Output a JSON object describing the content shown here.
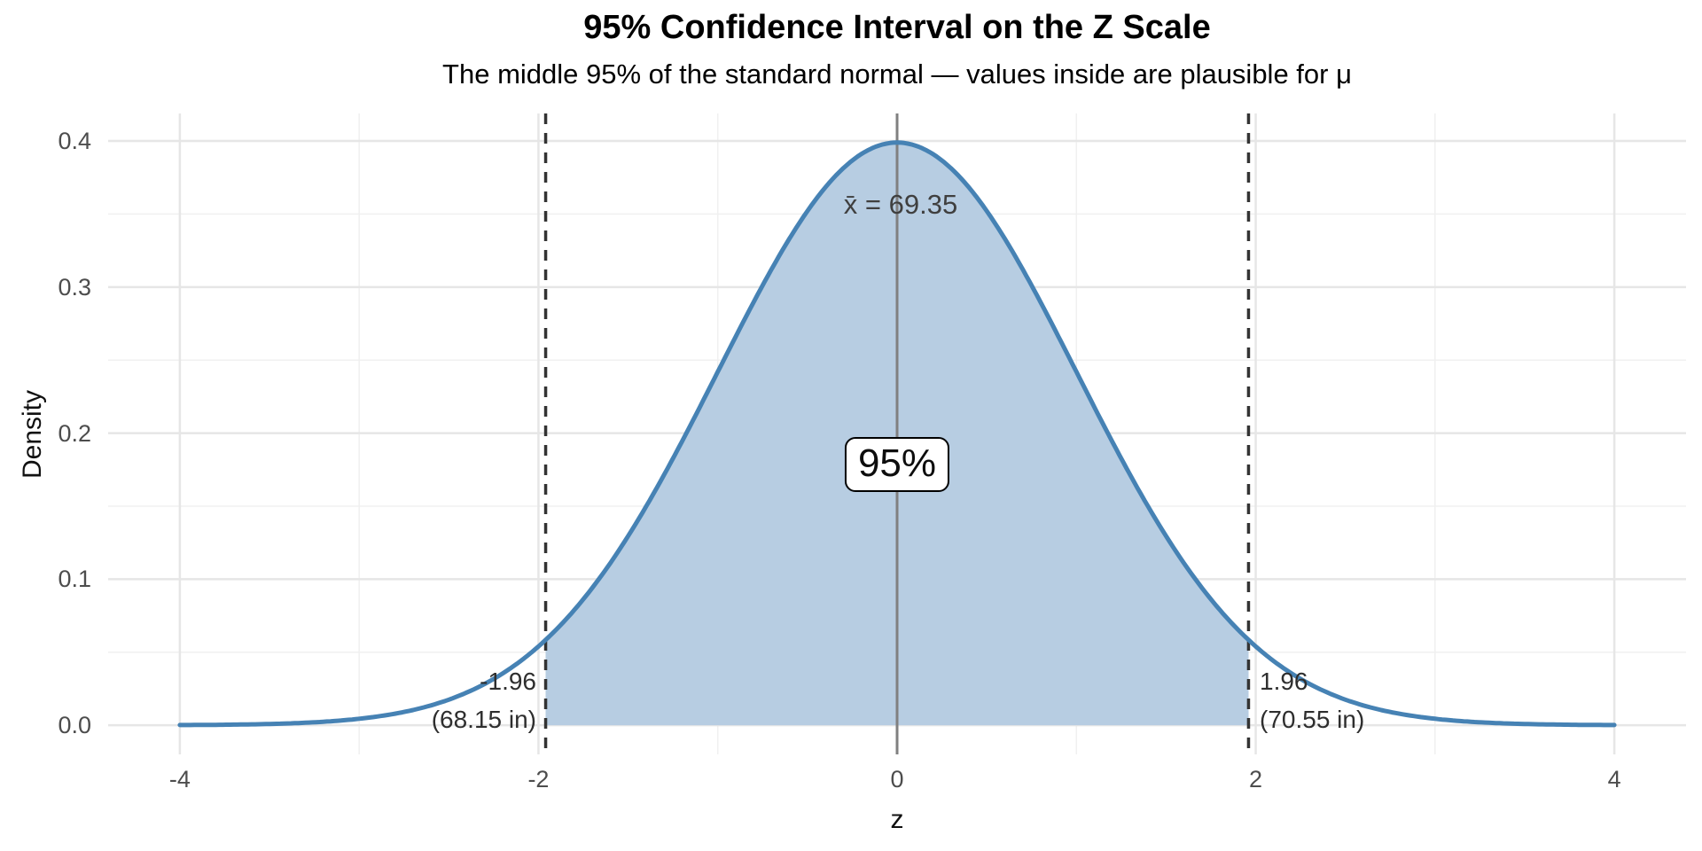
{
  "chart": {
    "title": "95% Confidence Interval on the Z Scale",
    "subtitle": "The middle 95% of the standard normal — values inside are plausible for μ",
    "x_axis": {
      "label": "z",
      "tick_values": [
        -4,
        -2,
        0,
        2,
        4
      ],
      "tick_labels": [
        "-4",
        "-2",
        "0",
        "2",
        "4"
      ],
      "minor_tick_values": [
        -3,
        -1,
        1,
        3
      ]
    },
    "y_axis": {
      "label": "Density",
      "tick_values": [
        0,
        0.1,
        0.2,
        0.3,
        0.4
      ],
      "tick_labels": [
        "0.0",
        "0.1",
        "0.2",
        "0.3",
        "0.4"
      ],
      "minor_tick_values": [
        0.05,
        0.15,
        0.25,
        0.35
      ]
    },
    "annotations": {
      "mean_label": "x̄ = 69.35",
      "ci_label": "95%",
      "lower_bound": {
        "z": "-1.96",
        "original": "(68.15 in)"
      },
      "upper_bound": {
        "z": "1.96",
        "original": "(70.55 in)"
      }
    },
    "colors": {
      "curve_stroke": "#4682b4",
      "curve_fill": "#b7cde2",
      "dashed_line": "#333333",
      "mean_line": "#808080",
      "grid_major": "#e6e6e6",
      "grid_minor": "#f0f0f0",
      "tick_text": "#4d4d4d",
      "title_text": "#000000",
      "annotation_text": "#3f3f3f"
    }
  },
  "chart_data": {
    "type": "area",
    "title": "95% Confidence Interval on the Z Scale",
    "subtitle": "The middle 95% of the standard normal — values inside are plausible for μ",
    "xlabel": "z",
    "ylabel": "Density",
    "xlim": [
      -4,
      4
    ],
    "ylim": [
      0,
      0.4
    ],
    "grid": "major and minor, light gray, no axis lines or tick marks",
    "distribution": "standard normal pdf: exp(-z^2/2)/sqrt(2*pi)",
    "curve_points": {
      "z": [
        -4,
        -3.5,
        -3,
        -2.5,
        -2,
        -1.96,
        -1.5,
        -1,
        -0.5,
        0,
        0.5,
        1,
        1.5,
        1.96,
        2,
        2.5,
        3,
        3.5,
        4
      ],
      "density": [
        0.0001,
        0.0009,
        0.0044,
        0.0175,
        0.054,
        0.0584,
        0.1295,
        0.242,
        0.3521,
        0.3989,
        0.3521,
        0.242,
        0.1295,
        0.0584,
        0.054,
        0.0175,
        0.0044,
        0.0009,
        0.0001
      ]
    },
    "peak_density": 0.3989,
    "shaded_interval_z": [
      -1.96,
      1.96
    ],
    "shaded_probability": 0.95,
    "mean_line_z": 0,
    "sample_mean_original_scale": 69.35,
    "ci_original_scale": [
      68.15,
      70.55
    ],
    "original_scale_unit": "in"
  }
}
